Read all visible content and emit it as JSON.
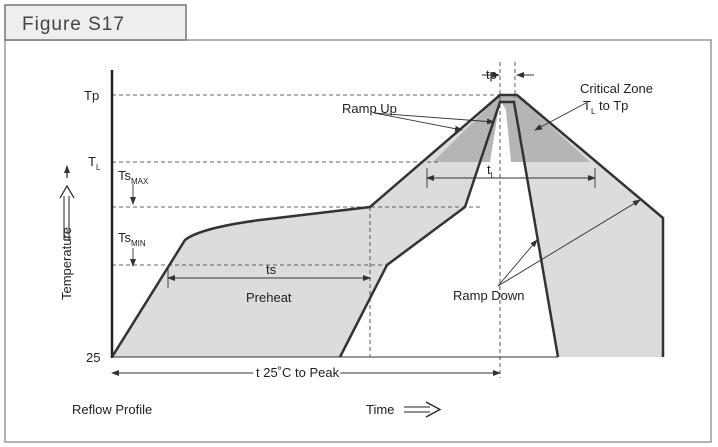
{
  "figure_label": "Figure S17",
  "y_labels": {
    "tp": "Tp",
    "tl": {
      "main": "T",
      "sub": "L"
    },
    "ts_max": {
      "main": "Ts",
      "sub": "MAX"
    },
    "ts_min": {
      "main": "Ts",
      "sub": "MIN"
    },
    "base": "25"
  },
  "axis_labels": {
    "y": "Temperature",
    "x": "Time"
  },
  "annotations": {
    "tp": "tp",
    "critical_zone": "Critical Zone",
    "tl_to_tp": {
      "main": "T",
      "sub": "L",
      "rest": " to Tp"
    },
    "ramp_up": "Ramp Up",
    "tl": {
      "main": "t",
      "sub": "L"
    },
    "ts": "ts",
    "preheat": "Preheat",
    "ramp_down": "Ramp Down",
    "t25": "t 25˚C to Peak"
  },
  "caption": "Reflow Profile"
}
